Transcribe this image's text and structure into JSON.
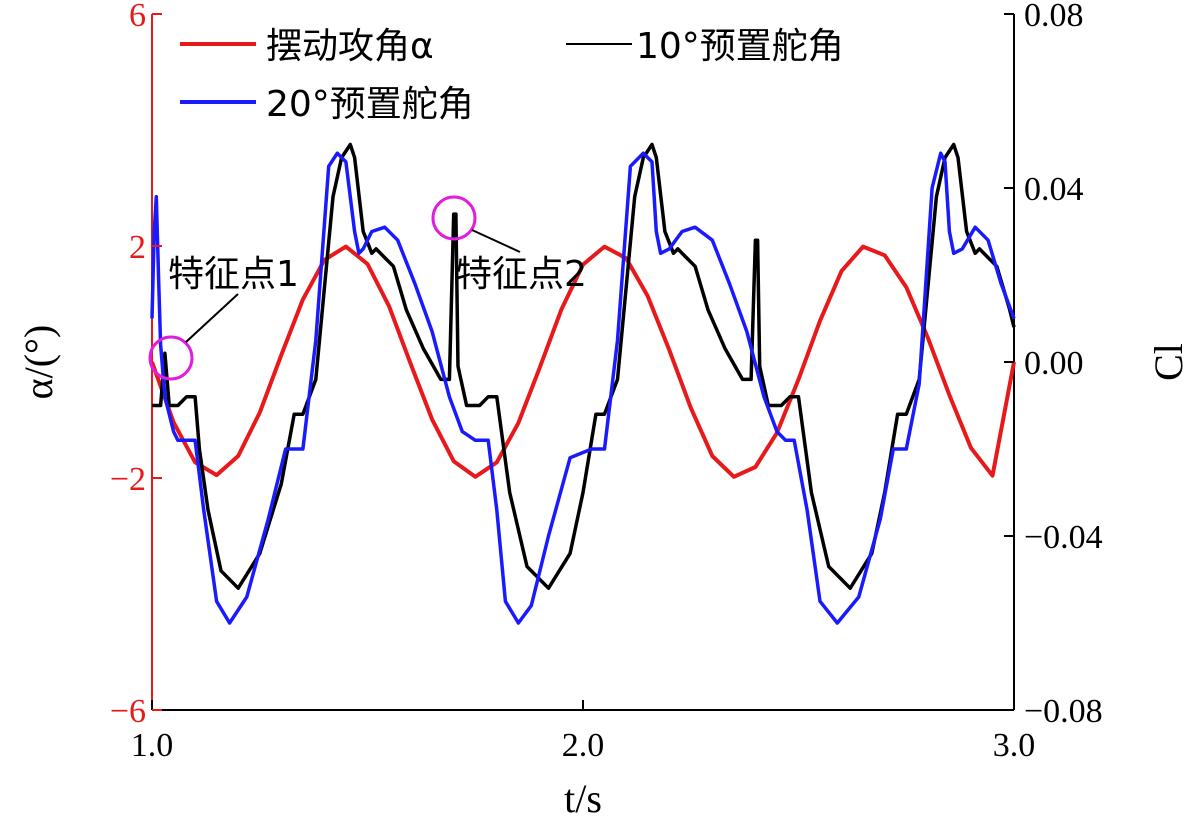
{
  "chart_data": {
    "type": "line",
    "title": "",
    "xlabel": "t/s",
    "ylabel_left": "α/(°)",
    "ylabel_right": "Cl",
    "xlim": [
      1.0,
      3.0
    ],
    "ylim_left": [
      -6,
      6
    ],
    "ylim_right": [
      -0.08,
      0.08
    ],
    "x_ticks": [
      "1.0",
      "2.0",
      "3.0"
    ],
    "y_left_ticks": [
      "6",
      "2",
      "−2",
      "−6"
    ],
    "y_right_ticks": [
      "0.08",
      "0.04",
      "0.00",
      "−0.04",
      "−0.08"
    ],
    "colors": {
      "left_axis": "#e8191b",
      "right_axis": "#000000",
      "alpha": "#e8191b",
      "deg10": "#000000",
      "deg20": "#1a1aff",
      "marker": "#e01ee0"
    },
    "series": [
      {
        "name": "摆动攻角α",
        "axis": "left",
        "color": "#e8191b",
        "x": [
          1.0,
          1.05,
          1.1,
          1.15,
          1.2,
          1.25,
          1.3,
          1.35,
          1.4,
          1.45,
          1.5,
          1.55,
          1.6,
          1.65,
          1.7,
          1.75,
          1.8,
          1.85,
          1.9,
          1.95,
          2.0,
          2.05,
          2.1,
          2.15,
          2.2,
          2.25,
          2.3,
          2.35,
          2.4,
          2.45,
          2.5,
          2.55,
          2.6,
          2.65,
          2.7,
          2.75,
          2.8,
          2.85,
          2.9,
          2.95,
          3.0
        ],
        "y": [
          0.0,
          -1.04,
          -1.73,
          -1.95,
          -1.62,
          -0.87,
          0.12,
          1.08,
          1.76,
          1.99,
          1.69,
          0.96,
          -0.03,
          -0.99,
          -1.71,
          -1.98,
          -1.73,
          -1.05,
          -0.09,
          0.91,
          1.68,
          1.99,
          1.79,
          1.14,
          0.21,
          -0.79,
          -1.62,
          -1.98,
          -1.81,
          -1.22,
          -0.3,
          0.71,
          1.57,
          1.99,
          1.84,
          1.29,
          0.42,
          -0.57,
          -1.48,
          -1.96,
          0.0
        ]
      },
      {
        "name": "10°预置舵角",
        "axis": "right",
        "color": "#000000",
        "x": [
          1.0,
          1.02,
          1.03,
          1.04,
          1.06,
          1.08,
          1.1,
          1.11,
          1.13,
          1.16,
          1.2,
          1.25,
          1.3,
          1.33,
          1.35,
          1.38,
          1.42,
          1.44,
          1.46,
          1.47,
          1.49,
          1.51,
          1.52,
          1.54,
          1.56,
          1.59,
          1.63,
          1.67,
          1.69,
          1.7,
          1.705,
          1.71,
          1.73,
          1.76,
          1.78,
          1.8,
          1.83,
          1.87,
          1.92,
          1.97,
          2.0,
          2.03,
          2.05,
          2.08,
          2.12,
          2.14,
          2.16,
          2.17,
          2.19,
          2.21,
          2.22,
          2.24,
          2.26,
          2.29,
          2.33,
          2.37,
          2.39,
          2.4,
          2.405,
          2.41,
          2.43,
          2.46,
          2.48,
          2.5,
          2.53,
          2.57,
          2.62,
          2.67,
          2.7,
          2.73,
          2.75,
          2.78,
          2.82,
          2.84,
          2.86,
          2.87,
          2.89,
          2.91,
          2.92,
          2.94,
          2.96,
          2.99,
          3.0
        ],
        "y": [
          -0.01,
          -0.01,
          0.002,
          -0.01,
          -0.01,
          -0.008,
          -0.008,
          -0.02,
          -0.034,
          -0.048,
          -0.052,
          -0.044,
          -0.028,
          -0.012,
          -0.012,
          -0.004,
          0.038,
          0.047,
          0.05,
          0.047,
          0.03,
          0.025,
          0.026,
          0.024,
          0.022,
          0.012,
          0.003,
          -0.004,
          -0.004,
          0.034,
          0.034,
          -0.001,
          -0.01,
          -0.01,
          -0.008,
          -0.008,
          -0.03,
          -0.047,
          -0.052,
          -0.044,
          -0.03,
          -0.012,
          -0.012,
          -0.004,
          0.038,
          0.047,
          0.05,
          0.047,
          0.03,
          0.025,
          0.026,
          0.024,
          0.022,
          0.012,
          0.003,
          -0.004,
          -0.004,
          0.028,
          0.028,
          -0.001,
          -0.01,
          -0.01,
          -0.008,
          -0.008,
          -0.03,
          -0.047,
          -0.052,
          -0.044,
          -0.03,
          -0.012,
          -0.012,
          -0.004,
          0.038,
          0.047,
          0.05,
          0.047,
          0.03,
          0.025,
          0.026,
          0.024,
          0.022,
          0.012,
          0.008
        ]
      },
      {
        "name": "20°预置舵角",
        "axis": "right",
        "color": "#1a1aff",
        "x": [
          1.0,
          1.005,
          1.01,
          1.015,
          1.02,
          1.03,
          1.05,
          1.06,
          1.08,
          1.1,
          1.12,
          1.15,
          1.18,
          1.22,
          1.27,
          1.31,
          1.33,
          1.35,
          1.38,
          1.41,
          1.43,
          1.45,
          1.47,
          1.48,
          1.49,
          1.51,
          1.54,
          1.57,
          1.61,
          1.65,
          1.69,
          1.72,
          1.75,
          1.78,
          1.8,
          1.82,
          1.85,
          1.88,
          1.92,
          1.97,
          2.02,
          2.05,
          2.08,
          2.11,
          2.14,
          2.16,
          2.17,
          2.18,
          2.2,
          2.23,
          2.26,
          2.3,
          2.34,
          2.38,
          2.42,
          2.45,
          2.47,
          2.49,
          2.52,
          2.55,
          2.59,
          2.64,
          2.69,
          2.72,
          2.75,
          2.78,
          2.81,
          2.83,
          2.84,
          2.85,
          2.86,
          2.88,
          2.91,
          2.94,
          2.97,
          3.0
        ],
        "y": [
          0.01,
          0.03,
          0.038,
          0.02,
          0.004,
          -0.008,
          -0.016,
          -0.018,
          -0.018,
          -0.018,
          -0.034,
          -0.055,
          -0.06,
          -0.054,
          -0.036,
          -0.02,
          -0.02,
          -0.02,
          0.005,
          0.045,
          0.048,
          0.046,
          0.03,
          0.025,
          0.026,
          0.03,
          0.031,
          0.028,
          0.018,
          0.007,
          -0.008,
          -0.016,
          -0.018,
          -0.018,
          -0.034,
          -0.055,
          -0.06,
          -0.056,
          -0.04,
          -0.022,
          -0.02,
          -0.02,
          0.005,
          0.045,
          0.048,
          0.046,
          0.03,
          0.025,
          0.026,
          0.03,
          0.031,
          0.028,
          0.018,
          0.007,
          -0.008,
          -0.016,
          -0.018,
          -0.018,
          -0.034,
          -0.055,
          -0.06,
          -0.054,
          -0.036,
          -0.02,
          -0.02,
          -0.005,
          0.04,
          0.048,
          0.046,
          0.03,
          0.025,
          0.026,
          0.031,
          0.028,
          0.018,
          0.01
        ]
      }
    ],
    "annotations": [
      {
        "text": "特征点1",
        "x": 1.01,
        "y": 0.0
      },
      {
        "text": "特征点2",
        "x": 1.7,
        "y": 0.0
      }
    ]
  }
}
